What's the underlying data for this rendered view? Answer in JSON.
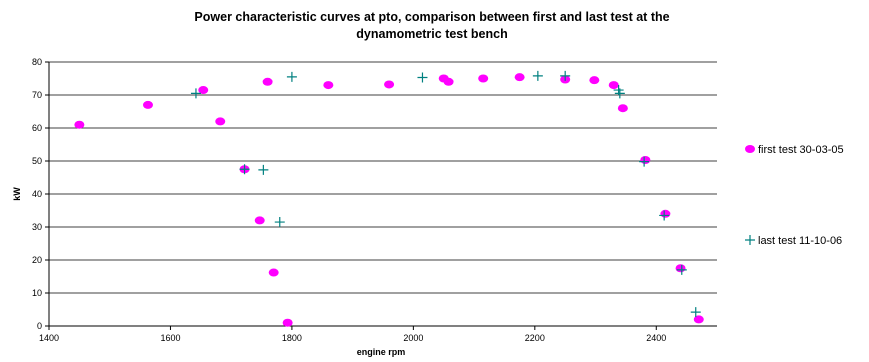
{
  "chart_data": {
    "type": "scatter",
    "title_lines": [
      "Power characteristic curves at pto, comparison between first and last test at the",
      "dynamometric test bench"
    ],
    "xlabel": "engine rpm",
    "ylabel": "kW",
    "xlim": [
      1400,
      2500
    ],
    "ylim": [
      0,
      80
    ],
    "x_ticks": [
      "1400",
      "1600",
      "1800",
      "2000",
      "2200",
      "2400"
    ],
    "y_ticks": [
      "0",
      "10",
      "20",
      "30",
      "40",
      "50",
      "60",
      "70",
      "80"
    ],
    "grid": "horizontal",
    "legend_position": "right",
    "series": [
      {
        "name": "first test 30-03-05",
        "marker": "circle",
        "color": "#ff00ff",
        "points": [
          [
            1450,
            61
          ],
          [
            1563,
            67
          ],
          [
            1654,
            71.5
          ],
          [
            1682,
            62
          ],
          [
            1722,
            47.5
          ],
          [
            1747,
            32
          ],
          [
            1760,
            74
          ],
          [
            1770,
            16.2
          ],
          [
            1793,
            1
          ],
          [
            1860,
            73
          ],
          [
            1960,
            73.2
          ],
          [
            2050,
            75
          ],
          [
            2058,
            74
          ],
          [
            2115,
            75
          ],
          [
            2175,
            75.4
          ],
          [
            2250,
            74.7
          ],
          [
            2298,
            74.5
          ],
          [
            2330,
            73
          ],
          [
            2345,
            66
          ],
          [
            2382,
            50.3
          ],
          [
            2415,
            34
          ],
          [
            2440,
            17.5
          ],
          [
            2470,
            2
          ]
        ]
      },
      {
        "name": "last test 11-10-06",
        "marker": "plus",
        "color": "#008080",
        "points": [
          [
            1642,
            70.5
          ],
          [
            1722,
            47.5
          ],
          [
            1753,
            47.3
          ],
          [
            1780,
            31.5
          ],
          [
            1800,
            75.5
          ],
          [
            2015,
            75.3
          ],
          [
            2205,
            75.8
          ],
          [
            2250,
            75.8
          ],
          [
            2338,
            71.5
          ],
          [
            2340,
            70.5
          ],
          [
            2380,
            49.8
          ],
          [
            2413,
            33.5
          ],
          [
            2442,
            17
          ],
          [
            2465,
            4.2
          ]
        ]
      }
    ]
  }
}
